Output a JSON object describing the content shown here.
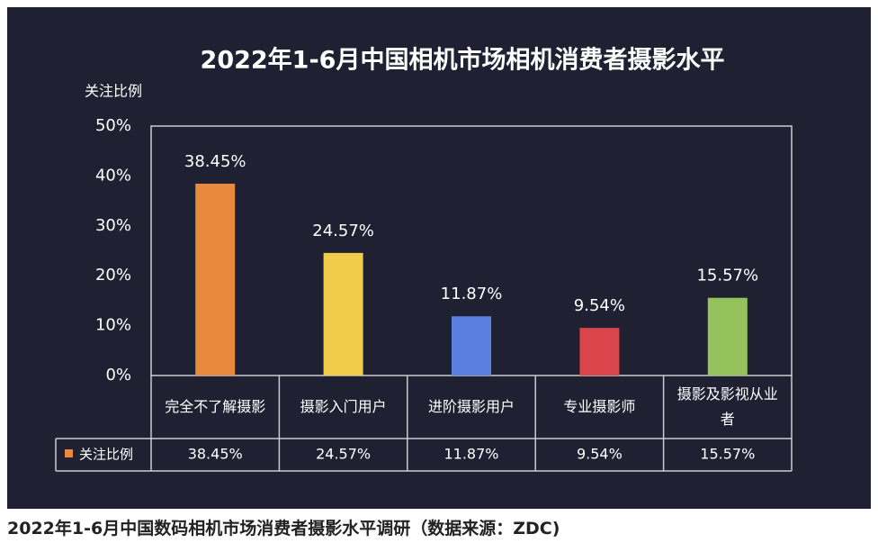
{
  "chart_data": {
    "type": "bar",
    "title": "2022年1-6月中国相机市场相机消费者摄影水平",
    "y_label": "关注比例",
    "categories": [
      "完全不了解摄影",
      "摄影入门用户",
      "进阶摄影用户",
      "专业摄影师",
      "摄影及影视从业者"
    ],
    "series": [
      {
        "name": "关注比例",
        "color": "#e8893f",
        "values": [
          38.45,
          24.57,
          11.87,
          9.54,
          15.57
        ],
        "value_labels": [
          "38.45%",
          "24.57%",
          "11.87%",
          "9.54%",
          "15.57%"
        ],
        "colors": [
          "#e8893f",
          "#f1cb4a",
          "#5b7fe0",
          "#d9454a",
          "#95c25c"
        ]
      }
    ],
    "ylim": [
      0,
      50
    ],
    "yticks": [
      {
        "value": 0,
        "label": "0%"
      },
      {
        "value": 10,
        "label": "10%"
      },
      {
        "value": 20,
        "label": "20%"
      },
      {
        "value": 30,
        "label": "30%"
      },
      {
        "value": 40,
        "label": "40%"
      },
      {
        "value": 50,
        "label": "50%"
      }
    ]
  },
  "caption": "2022年1-6月中国数码相机市场消费者摄影水平调研（数据来源：ZDC)"
}
